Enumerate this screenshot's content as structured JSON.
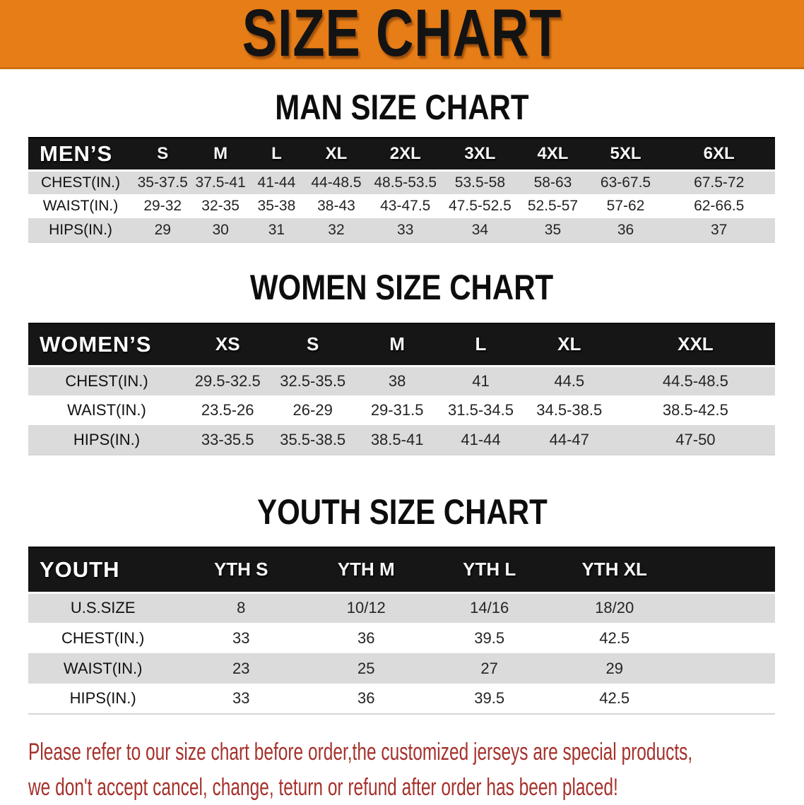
{
  "banner": {
    "title": "SIZE CHART"
  },
  "colors": {
    "banner_bg": "#E67D17",
    "bar_bg": "#161616",
    "row_gray": "#DBDBDB",
    "footer_red": "#A5312C"
  },
  "sections": {
    "men": {
      "heading": "MAN SIZE CHART",
      "corner": "MEN’S",
      "cols": [
        "S",
        "M",
        "L",
        "XL",
        "2XL",
        "3XL",
        "4XL",
        "5XL",
        "6XL"
      ],
      "rows": [
        {
          "label": "CHEST(IN.)",
          "v": [
            "35-37.5",
            "37.5-41",
            "41-44",
            "44-48.5",
            "48.5-53.5",
            "53.5-58",
            "58-63",
            "63-67.5",
            "67.5-72"
          ]
        },
        {
          "label": "WAIST(IN.)",
          "v": [
            "29-32",
            "32-35",
            "35-38",
            "38-43",
            "43-47.5",
            "47.5-52.5",
            "52.5-57",
            "57-62",
            "62-66.5"
          ]
        },
        {
          "label": "HIPS(IN.)",
          "v": [
            "29",
            "30",
            "31",
            "32",
            "33",
            "34",
            "35",
            "36",
            "37"
          ]
        }
      ]
    },
    "women": {
      "heading": "WOMEN SIZE CHART",
      "corner": "WOMEN’S",
      "cols": [
        "XS",
        "S",
        "M",
        "L",
        "XL",
        "XXL"
      ],
      "rows": [
        {
          "label": "CHEST(IN.)",
          "v": [
            "29.5-32.5",
            "32.5-35.5",
            "38",
            "41",
            "44.5",
            "44.5-48.5"
          ]
        },
        {
          "label": "WAIST(IN.)",
          "v": [
            "23.5-26",
            "26-29",
            "29-31.5",
            "31.5-34.5",
            "34.5-38.5",
            "38.5-42.5"
          ]
        },
        {
          "label": "HIPS(IN.)",
          "v": [
            "33-35.5",
            "35.5-38.5",
            "38.5-41",
            "41-44",
            "44-47",
            "47-50"
          ]
        }
      ]
    },
    "youth": {
      "heading": "YOUTH SIZE CHART",
      "corner": "YOUTH",
      "cols": [
        "YTH S",
        "YTH M",
        "YTH L",
        "YTH XL"
      ],
      "rows": [
        {
          "label": "U.S.SIZE",
          "v": [
            "8",
            "10/12",
            "14/16",
            "18/20"
          ]
        },
        {
          "label": "CHEST(IN.)",
          "v": [
            "33",
            "36",
            "39.5",
            "42.5"
          ]
        },
        {
          "label": "WAIST(IN.)",
          "v": [
            "23",
            "25",
            "27",
            "29"
          ]
        },
        {
          "label": "HIPS(IN.)",
          "v": [
            "33",
            "36",
            "39.5",
            "42.5"
          ]
        }
      ]
    }
  },
  "footer": {
    "line1": "Please refer to our size chart before order,the customized jerseys are special products,",
    "line2": "we don't accept cancel, change, teturn or refund after order has been placed!"
  }
}
